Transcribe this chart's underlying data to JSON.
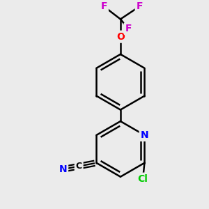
{
  "bg_color": "#ebebeb",
  "bond_color": "#000000",
  "bond_width": 1.8,
  "F_color": "#cc00cc",
  "O_color": "#ff0000",
  "N_color": "#0000ff",
  "Cl_color": "#00cc00",
  "C_color": "#000000",
  "figsize": [
    3.0,
    3.0
  ],
  "dpi": 100,
  "xlim": [
    -2.5,
    2.5
  ],
  "ylim": [
    -3.2,
    3.2
  ]
}
